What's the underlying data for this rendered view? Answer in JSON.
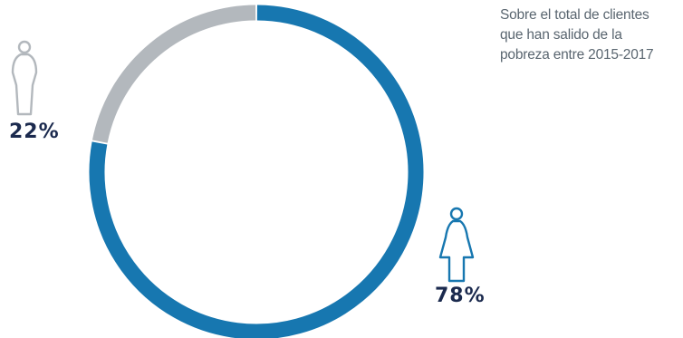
{
  "chart_data": {
    "type": "pie",
    "variant": "donut",
    "title": "",
    "subtitle_lines": [
      "Sobre el total de clientes",
      "que han salido de la",
      "pobreza entre 2015-2017"
    ],
    "slices": [
      {
        "label": "78%",
        "value": 78,
        "color": "#1777b0",
        "icon": "woman-icon"
      },
      {
        "label": "22%",
        "value": 22,
        "color": "#b3b8bd",
        "icon": "man-icon"
      }
    ],
    "legend": "none"
  }
}
